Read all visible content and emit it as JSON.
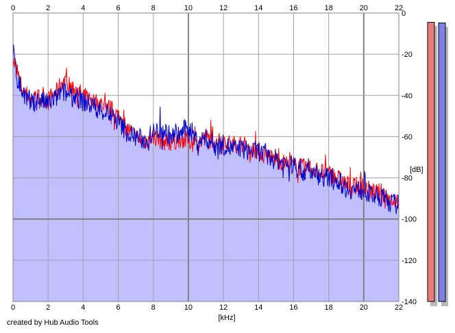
{
  "chart_data": {
    "type": "area",
    "title": "",
    "xlabel": "[kHz]",
    "ylabel": "[dB]",
    "xlim": [
      0,
      22
    ],
    "ylim": [
      -140,
      0
    ],
    "x_ticks": [
      "0",
      "2",
      "4",
      "6",
      "8",
      "10",
      "12",
      "14",
      "16",
      "18",
      "20",
      "22"
    ],
    "y_ticks": [
      "0",
      "-20",
      "-40",
      "-60",
      "-80",
      "-100",
      "-120",
      "-140"
    ],
    "grid": true,
    "colors": {
      "fill": "#c0c0ff",
      "red": "#ff0000",
      "blue": "#0000cc",
      "grid": "#a0a0a0",
      "axis": "#808080"
    },
    "series": [
      {
        "color": "red",
        "x": [
          0,
          0.2,
          0.5,
          1,
          1.5,
          2,
          2.5,
          2.8,
          3.2,
          3.6,
          4,
          4.5,
          5,
          5.5,
          6,
          6.5,
          7,
          7.5,
          8,
          8.5,
          9,
          9.5,
          10,
          10.5,
          11,
          11.5,
          12,
          12.5,
          13,
          13.5,
          14,
          14.5,
          15,
          15.5,
          16,
          16.5,
          17,
          17.5,
          18,
          18.5,
          19,
          19.5,
          20,
          20.5,
          21,
          21.5,
          22
        ],
        "y": [
          -22,
          -28,
          -36,
          -42,
          -41,
          -42,
          -38,
          -33,
          -35,
          -37,
          -40,
          -42,
          -44,
          -46,
          -50,
          -56,
          -60,
          -62,
          -60,
          -62,
          -63,
          -61,
          -62,
          -64,
          -60,
          -63,
          -62,
          -64,
          -63,
          -66,
          -67,
          -70,
          -71,
          -73,
          -74,
          -75,
          -75,
          -77,
          -78,
          -80,
          -83,
          -84,
          -84,
          -87,
          -87,
          -90,
          -91
        ]
      },
      {
        "color": "blue",
        "x": [
          0,
          0.2,
          0.5,
          1,
          1.5,
          2,
          2.5,
          2.8,
          3.2,
          3.6,
          4,
          4.5,
          5,
          5.5,
          6,
          6.5,
          7,
          7.5,
          8,
          8.5,
          9,
          9.5,
          10,
          10.5,
          11,
          11.5,
          12,
          12.5,
          13,
          13.5,
          14,
          14.5,
          15,
          15.5,
          16,
          16.5,
          17,
          17.5,
          18,
          18.5,
          19,
          19.5,
          20,
          20.5,
          21,
          21.5,
          22
        ],
        "y": [
          -18,
          -30,
          -38,
          -44,
          -42,
          -44,
          -41,
          -38,
          -40,
          -41,
          -43,
          -45,
          -47,
          -49,
          -53,
          -58,
          -60,
          -62,
          -58,
          -56,
          -60,
          -59,
          -55,
          -62,
          -61,
          -64,
          -64,
          -66,
          -66,
          -67,
          -67,
          -70,
          -71,
          -73,
          -74,
          -77,
          -77,
          -79,
          -80,
          -81,
          -85,
          -86,
          -86,
          -89,
          -89,
          -92,
          -93
        ]
      }
    ],
    "level_meters": [
      {
        "channel": "left",
        "color": "#e87a7a",
        "level_db": -5,
        "range_db": [
          -140,
          0
        ]
      },
      {
        "channel": "right",
        "color": "#7f7fe8",
        "level_db": -5,
        "range_db": [
          -140,
          0
        ]
      }
    ]
  },
  "footer": {
    "credit": "created by Hub Audio Tools"
  }
}
